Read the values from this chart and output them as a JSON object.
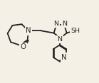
{
  "bg_color": "#f5f0e6",
  "line_color": "#252525",
  "line_width": 1.3,
  "font_size": 6.8,
  "xlim": [
    0.02,
    0.98
  ],
  "ylim": [
    0.1,
    0.95
  ]
}
